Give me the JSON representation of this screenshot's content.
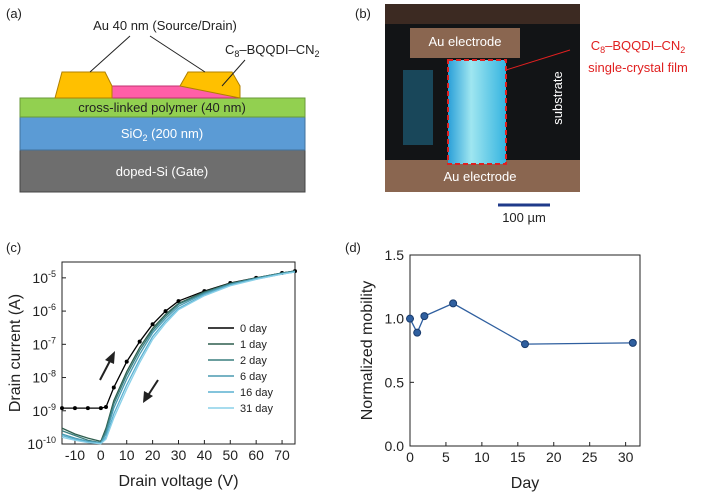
{
  "panel_labels": [
    "(a)",
    "(b)",
    "(c)",
    "(d)"
  ],
  "device_diagram": {
    "source_drain": "Au 40 nm (Source/Drain)",
    "semiconductor": [
      "C",
      "8",
      "–BQQDI–CN",
      "2"
    ],
    "polymer": "cross-linked polymer (40 nm)",
    "oxide": [
      "SiO",
      "2",
      " (200 nm)"
    ],
    "gate": "doped-Si (Gate)"
  },
  "micrograph": {
    "top_electrode": "Au electrode",
    "bottom_electrode": "Au electrode",
    "substrate": "substrate",
    "film_name": [
      "C",
      "8",
      "–BQQDI–CN",
      "2"
    ],
    "film_desc": "single-crystal film",
    "scale_bar": "100 µm"
  },
  "chart_data": [
    {
      "type": "line",
      "xlabel": "Drain voltage (V)",
      "ylabel": "Drain current (A)",
      "log_y": true,
      "x": [
        -15,
        -10,
        -5,
        0,
        2,
        5,
        10,
        15,
        20,
        25,
        30,
        40,
        50,
        60,
        70,
        75
      ],
      "xlim": [
        -15,
        75
      ],
      "xticks": [
        -10,
        0,
        10,
        20,
        30,
        40,
        50,
        60,
        70
      ],
      "ylim": [
        1e-10,
        3e-05
      ],
      "yticks": [
        {
          "value": 1e-10,
          "label": "10",
          "exponent": "-10"
        },
        {
          "value": 1e-09,
          "label": "10",
          "exponent": "-9"
        },
        {
          "value": 1e-08,
          "label": "10",
          "exponent": "-8"
        },
        {
          "value": 1e-07,
          "label": "10",
          "exponent": "-7"
        },
        {
          "value": 1e-06,
          "label": "10",
          "exponent": "-6"
        },
        {
          "value": 1e-05,
          "label": "10",
          "exponent": "-5"
        }
      ],
      "legend": "lower-right",
      "series": [
        {
          "name": "0 day",
          "color": "#000000",
          "markers": true,
          "values": [
            1.2e-09,
            1.2e-09,
            1.2e-09,
            1.2e-09,
            1.3e-09,
            5e-09,
            3e-08,
            1.2e-07,
            4e-07,
            1e-06,
            2e-06,
            4e-06,
            7e-06,
            1e-05,
            1.4e-05,
            1.6e-05
          ]
        },
        {
          "name": "1 day",
          "color": "#2e5e4e",
          "values": [
            3e-10,
            2e-10,
            1.5e-10,
            1.2e-10,
            3e-10,
            2e-09,
            1.5e-08,
            8e-08,
            3e-07,
            8e-07,
            1.7e-06,
            3.8e-06,
            6.8e-06,
            1e-05,
            1.4e-05,
            1.6e-05
          ]
        },
        {
          "name": "2 day",
          "color": "#3a7f7f",
          "values": [
            2.5e-10,
            1.8e-10,
            1.3e-10,
            1.1e-10,
            2.5e-10,
            1.6e-09,
            1.2e-08,
            6.5e-08,
            2.6e-07,
            7e-07,
            1.6e-06,
            3.6e-06,
            6.6e-06,
            9.8e-06,
            1.4e-05,
            1.6e-05
          ]
        },
        {
          "name": "6 day",
          "color": "#4a9ab0",
          "values": [
            2e-10,
            1.5e-10,
            1.2e-10,
            1.1e-10,
            2e-10,
            1.2e-09,
            9e-09,
            5e-08,
            2.2e-07,
            6e-07,
            1.4e-06,
            3.4e-06,
            6.4e-06,
            9.6e-06,
            1.35e-05,
            1.55e-05
          ]
        },
        {
          "name": "16 day",
          "color": "#5ab0d0",
          "values": [
            1.8e-10,
            1.4e-10,
            1.15e-10,
            1.05e-10,
            1.6e-10,
            8e-10,
            6e-09,
            3.5e-08,
            1.7e-07,
            5e-07,
            1.2e-06,
            3.1e-06,
            6e-06,
            9.2e-06,
            1.3e-05,
            1.5e-05
          ]
        },
        {
          "name": "31 day",
          "color": "#8ad0e8",
          "values": [
            1.6e-10,
            1.3e-10,
            1.1e-10,
            1.02e-10,
            1.4e-10,
            6e-10,
            4.5e-09,
            2.8e-08,
            1.4e-07,
            4.3e-07,
            1.1e-06,
            2.9e-06,
            5.8e-06,
            9e-06,
            1.3e-05,
            1.5e-05
          ]
        }
      ]
    },
    {
      "type": "line",
      "xlabel": "Day",
      "ylabel": "Normalized mobility",
      "color": "#2f5f9f",
      "markers": true,
      "x": [
        0,
        1,
        2,
        6,
        16,
        31
      ],
      "values": [
        1.0,
        0.89,
        1.02,
        1.12,
        0.8,
        0.81
      ],
      "xlim": [
        0,
        32
      ],
      "xticks": [
        0,
        5,
        10,
        15,
        20,
        25,
        30
      ],
      "ylim": [
        0,
        1.5
      ],
      "yticks": [
        {
          "value": 0,
          "label": "0.0"
        },
        {
          "value": 0.5,
          "label": "0.5"
        },
        {
          "value": 1,
          "label": "1.0"
        },
        {
          "value": 1.5,
          "label": "1.5"
        }
      ]
    }
  ]
}
